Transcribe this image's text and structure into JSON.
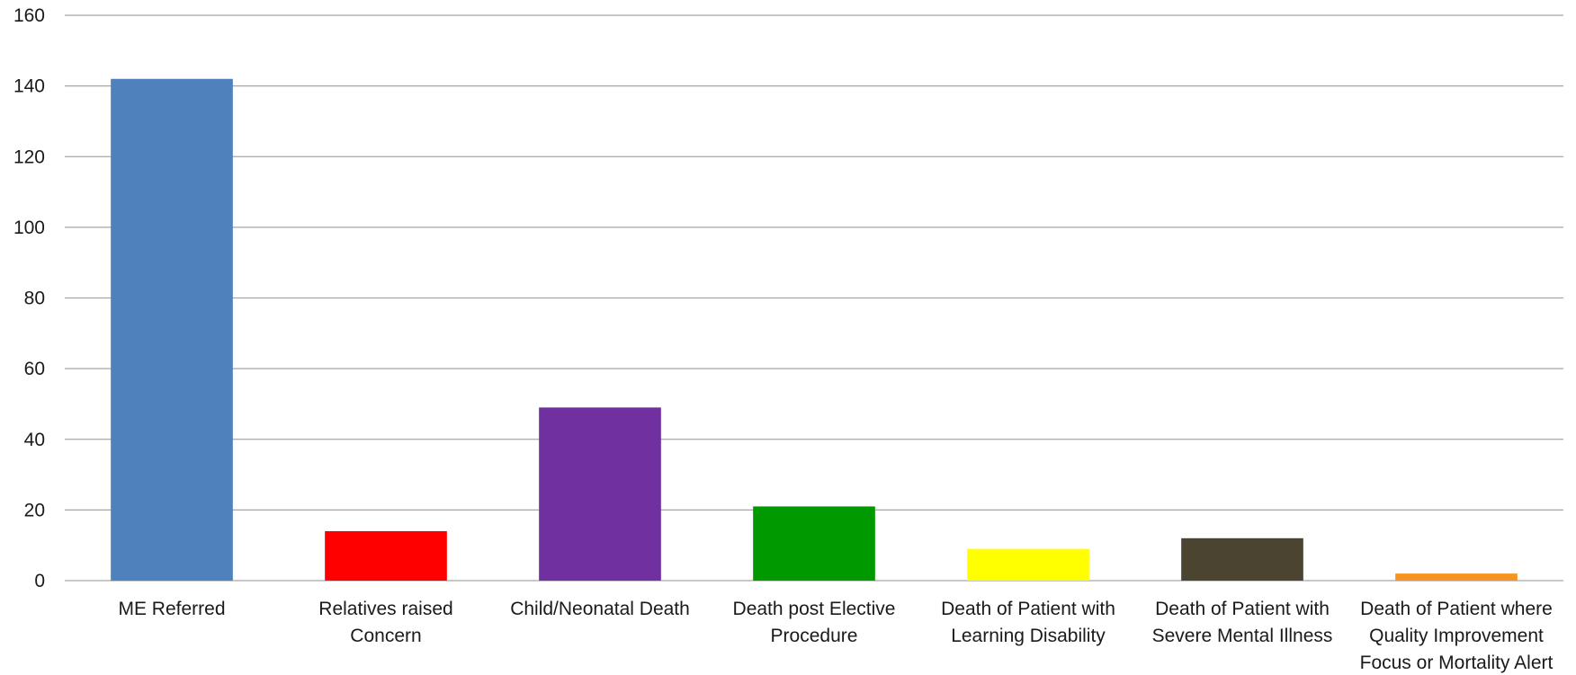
{
  "chart_data": {
    "type": "bar",
    "title": "",
    "xlabel": "",
    "ylabel": "",
    "ylim": [
      0,
      160
    ],
    "yticks": [
      0,
      20,
      40,
      60,
      80,
      100,
      120,
      140,
      160
    ],
    "grid": true,
    "legend": "none",
    "categories": [
      [
        "ME Referred"
      ],
      [
        "Relatives raised",
        "Concern"
      ],
      [
        "Child/Neonatal Death"
      ],
      [
        "Death post Elective",
        "Procedure"
      ],
      [
        "Death of Patient with",
        "Learning Disability"
      ],
      [
        "Death of Patient with",
        "Severe Mental Illness"
      ],
      [
        "Death of Patient where",
        "Quality Improvement",
        "Focus or Mortality Alert"
      ]
    ],
    "values": [
      142,
      14,
      49,
      21,
      9,
      12,
      2
    ],
    "colors": [
      "#4f81bd",
      "#ff0000",
      "#7030a0",
      "#009900",
      "#ffff00",
      "#4a4430",
      "#f7941d"
    ],
    "grid_color": "#a6a6a6",
    "axis_color": "#a6a6a6"
  }
}
